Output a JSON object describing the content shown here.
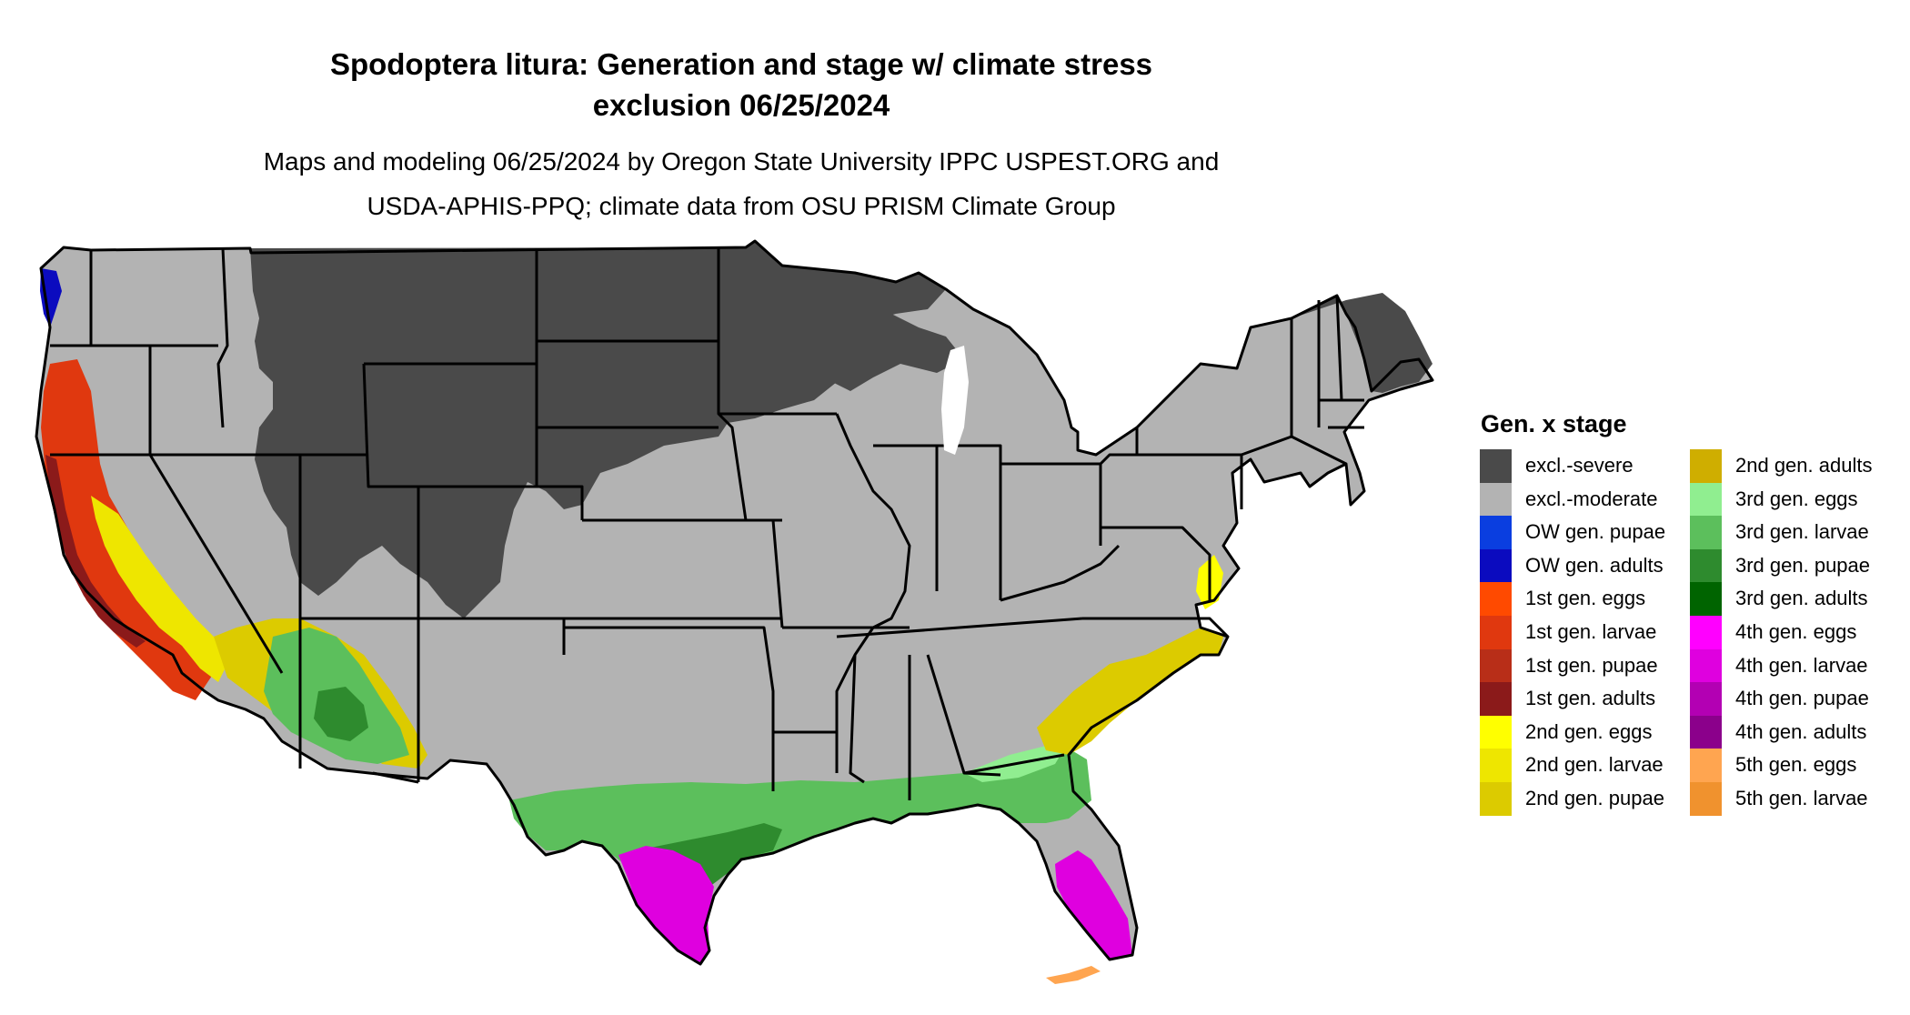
{
  "title_line1": "Spodoptera litura: Generation and stage w/ climate stress",
  "title_line2": "exclusion 06/25/2024",
  "subtitle_line1": "Maps and modeling 06/25/2024 by Oregon State University IPPC USPEST.ORG and",
  "subtitle_line2": "USDA-APHIS-PPQ; climate data from OSU PRISM Climate Group",
  "legend": {
    "title": "Gen. x stage",
    "column1": [
      {
        "label": "excl.-severe",
        "color": "#4a4a4a"
      },
      {
        "label": "excl.-moderate",
        "color": "#b3b3b3"
      },
      {
        "label": "OW gen. pupae",
        "color": "#0a3ee0"
      },
      {
        "label": "OW gen. adults",
        "color": "#0b0bbf"
      },
      {
        "label": "1st gen. eggs",
        "color": "#ff4a00"
      },
      {
        "label": "1st gen. larvae",
        "color": "#e0380f"
      },
      {
        "label": "1st gen. pupae",
        "color": "#b82e18"
      },
      {
        "label": "1st gen. adults",
        "color": "#8b1a1a"
      },
      {
        "label": "2nd gen. eggs",
        "color": "#ffff00"
      },
      {
        "label": "2nd gen. larvae",
        "color": "#eee600"
      },
      {
        "label": "2nd gen. pupae",
        "color": "#dccb00"
      }
    ],
    "column2": [
      {
        "label": "2nd gen. adults",
        "color": "#cfae00"
      },
      {
        "label": "3rd gen. eggs",
        "color": "#90ee90"
      },
      {
        "label": "3rd gen. larvae",
        "color": "#5cbf5c"
      },
      {
        "label": "3rd gen. pupae",
        "color": "#2e8b2e"
      },
      {
        "label": "3rd gen. adults",
        "color": "#006400"
      },
      {
        "label": "4th gen. eggs",
        "color": "#ff00ff"
      },
      {
        "label": "4th gen. larvae",
        "color": "#df00df"
      },
      {
        "label": "4th gen. pupae",
        "color": "#b300b3"
      },
      {
        "label": "4th gen. adults",
        "color": "#8b008b"
      },
      {
        "label": "5th gen. eggs",
        "color": "#ffa550"
      },
      {
        "label": "5th gen. larvae",
        "color": "#f0922e"
      }
    ]
  }
}
